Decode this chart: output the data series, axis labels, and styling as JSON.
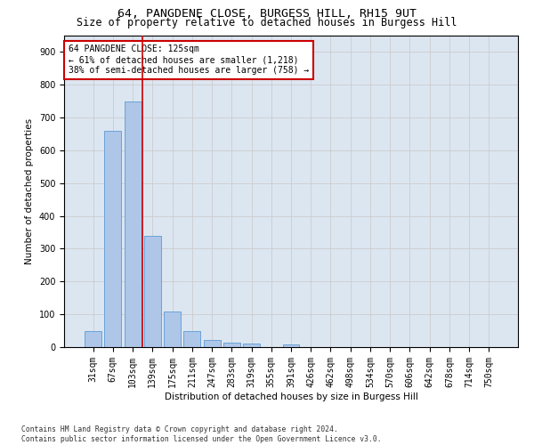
{
  "title_line1": "64, PANGDENE CLOSE, BURGESS HILL, RH15 9UT",
  "title_line2": "Size of property relative to detached houses in Burgess Hill",
  "xlabel": "Distribution of detached houses by size in Burgess Hill",
  "ylabel": "Number of detached properties",
  "footnote": "Contains HM Land Registry data © Crown copyright and database right 2024.\nContains public sector information licensed under the Open Government Licence v3.0.",
  "bar_labels": [
    "31sqm",
    "67sqm",
    "103sqm",
    "139sqm",
    "175sqm",
    "211sqm",
    "247sqm",
    "283sqm",
    "319sqm",
    "355sqm",
    "391sqm",
    "426sqm",
    "462sqm",
    "498sqm",
    "534sqm",
    "570sqm",
    "606sqm",
    "642sqm",
    "678sqm",
    "714sqm",
    "750sqm"
  ],
  "bar_values": [
    50,
    660,
    750,
    340,
    108,
    50,
    22,
    14,
    10,
    0,
    8,
    0,
    0,
    0,
    0,
    0,
    0,
    0,
    0,
    0,
    0
  ],
  "bar_color": "#aec6e8",
  "bar_edge_color": "#5b9bd5",
  "vline_x": 2.5,
  "vline_color": "#cc0000",
  "annotation_box_text": "64 PANGDENE CLOSE: 125sqm\n← 61% of detached houses are smaller (1,218)\n38% of semi-detached houses are larger (758) →",
  "annotation_box_color": "#cc0000",
  "annotation_box_facecolor": "white",
  "ylim": [
    0,
    950
  ],
  "yticks": [
    0,
    100,
    200,
    300,
    400,
    500,
    600,
    700,
    800,
    900
  ],
  "grid_color": "#cccccc",
  "plot_bg_color": "#dce6f1",
  "title_fontsize": 9.5,
  "subtitle_fontsize": 8.5,
  "label_fontsize": 7.5,
  "tick_fontsize": 7,
  "annot_fontsize": 7
}
